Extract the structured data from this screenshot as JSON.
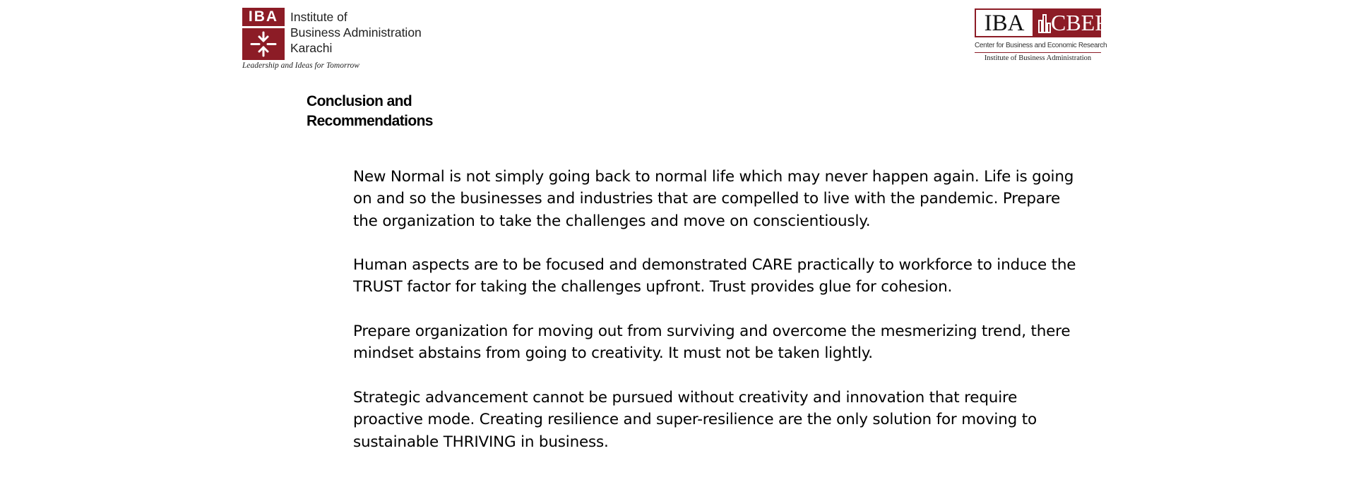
{
  "iba_logo": {
    "abbr": "IBA",
    "name_lines": [
      "Institute of",
      "Business Administration",
      "Karachi"
    ],
    "tagline": "Leadership and Ideas for Tomorrow",
    "brand_color": "#8c1c26"
  },
  "cber_logo": {
    "iba": "IBA",
    "cber": "CBER",
    "subtitle": "Center for Business and Economic Research",
    "institute": "Institute of Business Administration",
    "brand_color": "#8c1c26"
  },
  "section": {
    "title_lines": [
      "Conclusion and",
      "Recommendations"
    ]
  },
  "paragraphs": [
    "New Normal is not simply going back to normal life which may never happen again. Life is going on and so the businesses and industries that are compelled to live with the pandemic. Prepare the organization to take the challenges and move on conscientiously.",
    "Human aspects are to be focused and demonstrated CARE practically to workforce to induce the TRUST factor for taking the challenges upfront. Trust provides glue for cohesion.",
    "Prepare organization for moving out from surviving and overcome the mesmerizing trend, there mindset abstains from going to creativity. It must not be taken lightly.",
    "Strategic advancement cannot be pursued without creativity and innovation that require proactive mode. Creating resilience and super-resilience are the only solution for moving to sustainable THRIVING in business."
  ]
}
